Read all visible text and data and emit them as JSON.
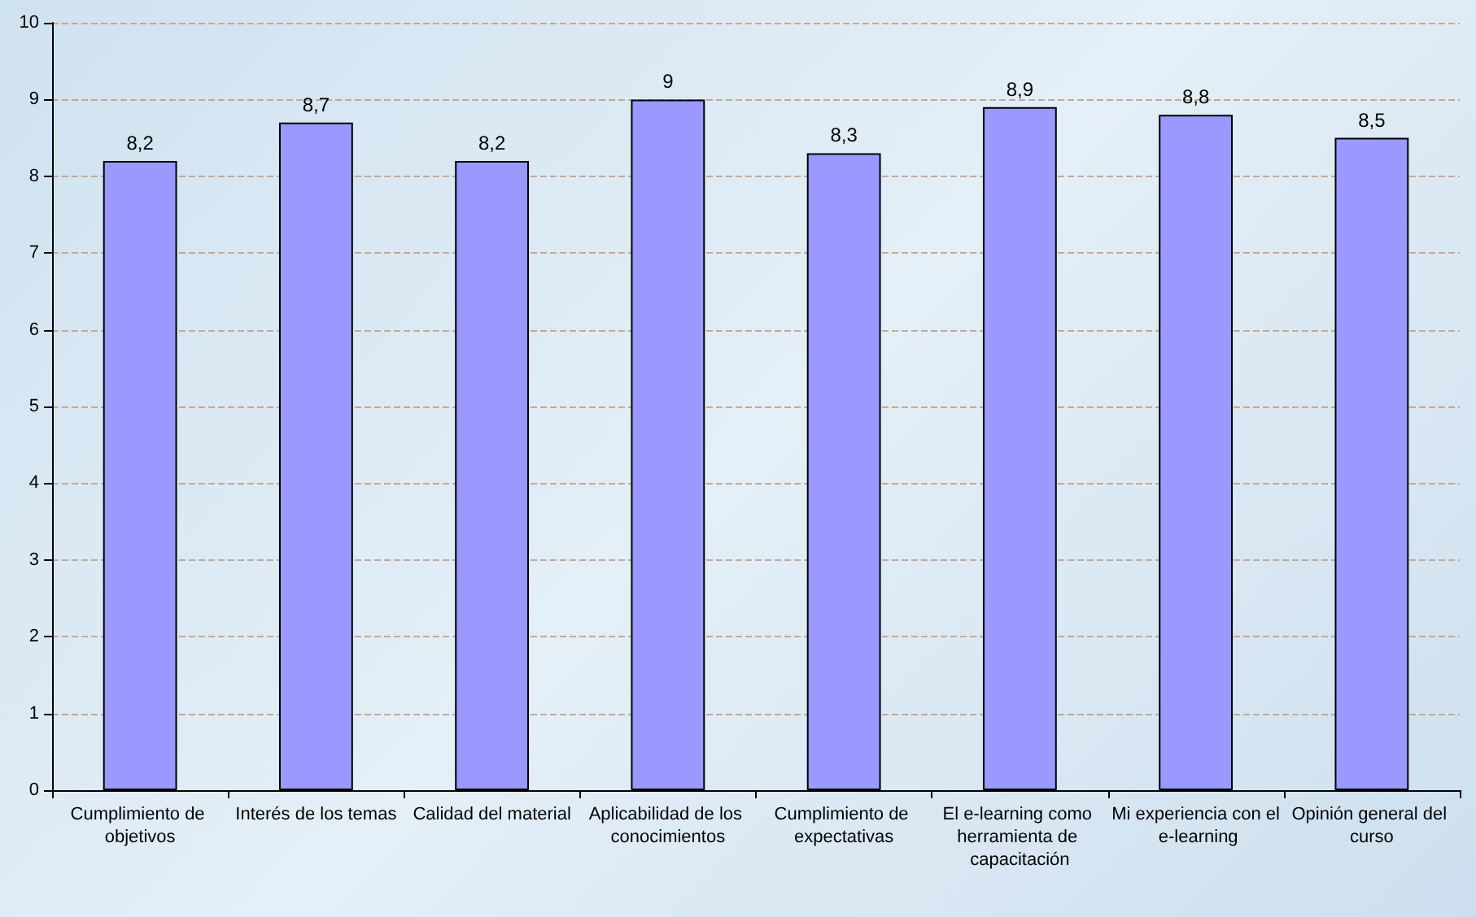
{
  "chart_data": {
    "type": "bar",
    "categories": [
      "Cumplimiento de objetivos",
      "Interés de los temas",
      "Calidad del material",
      "Aplicabilidad de los conocimientos",
      "Cumplimiento de expectativas",
      "El e-learning como herramienta de capacitación",
      "Mi experiencia con el e-learning",
      "Opinión general del curso"
    ],
    "values": [
      8.2,
      8.7,
      8.2,
      9,
      8.3,
      8.9,
      8.8,
      8.5
    ],
    "value_labels": [
      "8,2",
      "8,7",
      "8,2",
      "9",
      "8,3",
      "8,9",
      "8,8",
      "8,5"
    ],
    "color": "#9999ff",
    "ylim": [
      0,
      10
    ],
    "yticks": [
      0,
      1,
      2,
      3,
      4,
      5,
      6,
      7,
      8,
      9,
      10
    ],
    "grid": "y"
  }
}
